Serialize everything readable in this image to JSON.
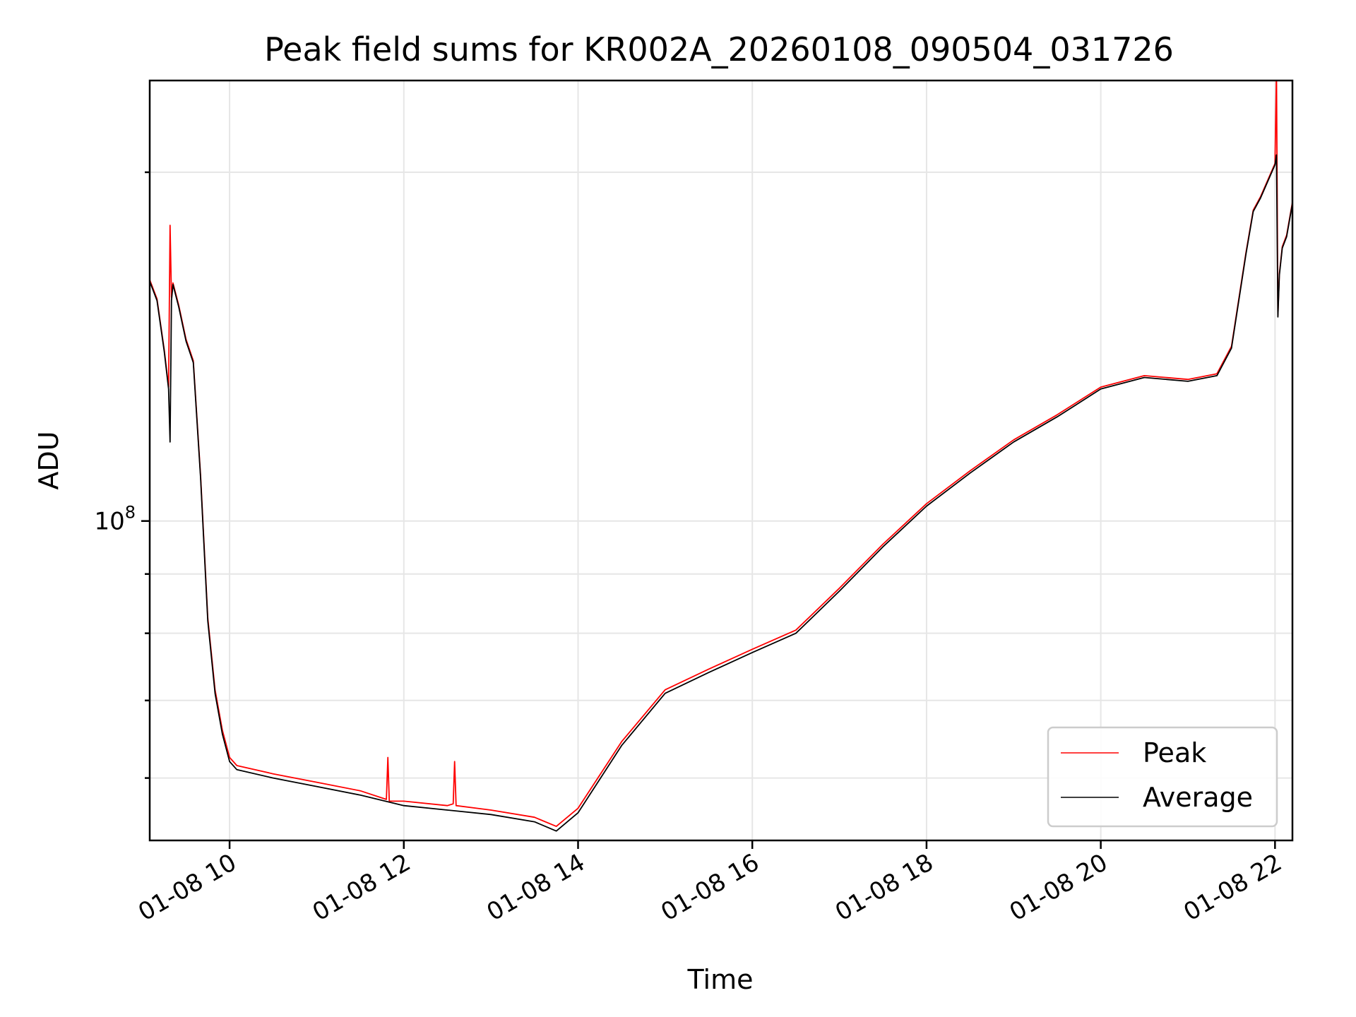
{
  "chart_data": {
    "type": "line",
    "title": "Peak field sums for KR002A_20260108_090504_031726",
    "xlabel": "Time",
    "ylabel": "ADU",
    "x_scale": "time",
    "y_scale": "log",
    "xlim": [
      "01-08 09:05",
      "01-08 22:12"
    ],
    "ylim": [
      53000000,
      240000000
    ],
    "x_ticks": [
      "01-08 10",
      "01-08 12",
      "01-08 14",
      "01-08 16",
      "01-08 18",
      "01-08 20",
      "01-08 22"
    ],
    "y_major_ticks": [
      {
        "value": 100000000,
        "base": "10",
        "exp": "8"
      }
    ],
    "y_minor_ticks": [
      60000000,
      70000000,
      80000000,
      90000000,
      200000000
    ],
    "grid": true,
    "legend": {
      "position": "lower-right",
      "entries": [
        "Peak",
        "Average"
      ]
    },
    "series": [
      {
        "name": "Average",
        "color": "#000000",
        "x": [
          "01-08 09:05",
          "01-08 09:10",
          "01-08 09:15",
          "01-08 09:18",
          "01-08 09:19",
          "01-08 09:20",
          "01-08 09:21",
          "01-08 09:25",
          "01-08 09:30",
          "01-08 09:35",
          "01-08 09:40",
          "01-08 09:45",
          "01-08 09:50",
          "01-08 09:55",
          "01-08 10:00",
          "01-08 10:05",
          "01-08 10:30",
          "01-08 11:00",
          "01-08 11:30",
          "01-08 12:00",
          "01-08 12:30",
          "01-08 13:00",
          "01-08 13:30",
          "01-08 13:45",
          "01-08 14:00",
          "01-08 14:30",
          "01-08 15:00",
          "01-08 15:30",
          "01-08 16:00",
          "01-08 16:30",
          "01-08 17:00",
          "01-08 17:30",
          "01-08 18:00",
          "01-08 18:30",
          "01-08 19:00",
          "01-08 19:30",
          "01-08 20:00",
          "01-08 20:30",
          "01-08 21:00",
          "01-08 21:20",
          "01-08 21:30",
          "01-08 21:40",
          "01-08 21:45",
          "01-08 21:50",
          "01-08 22:00",
          "01-08 22:01",
          "01-08 22:02",
          "01-08 22:03",
          "01-08 22:05",
          "01-08 22:08",
          "01-08 22:12"
        ],
        "values": [
          161000000,
          155000000,
          140000000,
          130000000,
          117000000,
          155000000,
          160000000,
          153000000,
          143000000,
          137000000,
          109000000,
          82000000,
          71000000,
          65500000,
          62000000,
          61000000,
          60000000,
          59000000,
          58000000,
          56800000,
          56300000,
          55800000,
          55000000,
          54000000,
          56000000,
          64000000,
          71000000,
          74000000,
          77000000,
          80000000,
          87000000,
          95000000,
          103000000,
          110000000,
          117000000,
          123000000,
          130000000,
          133000000,
          132000000,
          133500000,
          141000000,
          170000000,
          185000000,
          190000000,
          203000000,
          207000000,
          150000000,
          163000000,
          172000000,
          176000000,
          188000000
        ]
      },
      {
        "name": "Peak",
        "color": "#ff0000",
        "x": [
          "01-08 09:05",
          "01-08 09:10",
          "01-08 09:15",
          "01-08 09:18",
          "01-08 09:19",
          "01-08 09:20",
          "01-08 09:21",
          "01-08 09:25",
          "01-08 09:30",
          "01-08 09:35",
          "01-08 09:40",
          "01-08 09:45",
          "01-08 09:50",
          "01-08 09:55",
          "01-08 10:00",
          "01-08 10:05",
          "01-08 10:30",
          "01-08 11:00",
          "01-08 11:30",
          "01-08 11:48",
          "01-08 11:49",
          "01-08 11:50",
          "01-08 12:00",
          "01-08 12:30",
          "01-08 12:34",
          "01-08 12:35",
          "01-08 12:36",
          "01-08 13:00",
          "01-08 13:30",
          "01-08 13:45",
          "01-08 14:00",
          "01-08 14:30",
          "01-08 15:00",
          "01-08 15:30",
          "01-08 16:00",
          "01-08 16:30",
          "01-08 17:00",
          "01-08 17:30",
          "01-08 18:00",
          "01-08 18:30",
          "01-08 19:00",
          "01-08 19:30",
          "01-08 20:00",
          "01-08 20:30",
          "01-08 21:00",
          "01-08 21:20",
          "01-08 21:30",
          "01-08 21:40",
          "01-08 21:45",
          "01-08 21:50",
          "01-08 22:00",
          "01-08 22:01",
          "01-08 22:02",
          "01-08 22:03",
          "01-08 22:05",
          "01-08 22:08",
          "01-08 22:12"
        ],
        "values": [
          161500000,
          155500000,
          140500000,
          130500000,
          180000000,
          156000000,
          160500000,
          153500000,
          143500000,
          137500000,
          109500000,
          82500000,
          71500000,
          66000000,
          62500000,
          61500000,
          60500000,
          59500000,
          58500000,
          57500000,
          62500000,
          57300000,
          57300000,
          56800000,
          57000000,
          62000000,
          56800000,
          56300000,
          55500000,
          54500000,
          56500000,
          64500000,
          71500000,
          74500000,
          77500000,
          80500000,
          87500000,
          95500000,
          103500000,
          110500000,
          117500000,
          123500000,
          130500000,
          133500000,
          132500000,
          134000000,
          141500000,
          170500000,
          185500000,
          190500000,
          203500000,
          245000000,
          150500000,
          163500000,
          172500000,
          176500000,
          188500000
        ]
      }
    ]
  }
}
